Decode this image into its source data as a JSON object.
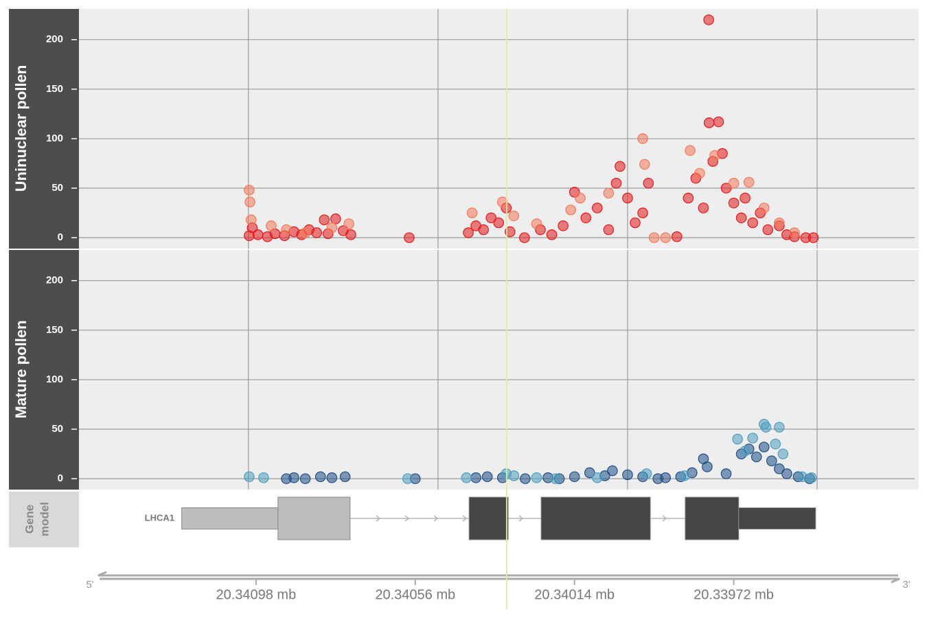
{
  "chart_data": [
    {
      "type": "scatter",
      "title": "Uninuclear pollen",
      "xlim": [
        20341447,
        20339232
      ],
      "xticks": [
        20341000,
        20340500,
        20340000,
        20339500
      ],
      "ylim": [
        -11,
        231
      ],
      "yticks": [
        0,
        50,
        100,
        150,
        200
      ],
      "grid": true,
      "series": [
        {
          "color": "#e41a1c",
          "x": [
            20340998,
            20340990,
            20340975,
            20340950,
            20340930,
            20340905,
            20340880,
            20340860,
            20340840,
            20340820,
            20340800,
            20340790,
            20340770,
            20340750,
            20340730,
            20340576,
            20340420,
            20340400,
            20340380,
            20340360,
            20340340,
            20340320,
            20340310,
            20340272,
            20340230,
            20340200,
            20340170,
            20340140,
            20340110,
            20340080,
            20340050,
            20340030,
            20340020,
            20340000,
            20339980,
            20339960,
            20339945,
            20339870,
            20339840,
            20339820,
            20339800,
            20339785,
            20339775,
            20339760,
            20339750,
            20339740,
            20339720,
            20339700,
            20339690,
            20339670,
            20339650,
            20339630,
            20339600,
            20339580,
            20339560,
            20339530,
            20339510,
            20339786
          ],
          "values": [
            2,
            10,
            3,
            1,
            4,
            2,
            6,
            3,
            8,
            5,
            18,
            4,
            19,
            7,
            3,
            0,
            5,
            12,
            8,
            20,
            15,
            30,
            6,
            0,
            8,
            3,
            12,
            46,
            20,
            30,
            8,
            55,
            72,
            40,
            15,
            25,
            55,
            1,
            40,
            60,
            30,
            116,
            77,
            117,
            85,
            50,
            35,
            20,
            40,
            15,
            25,
            8,
            12,
            3,
            1,
            0,
            0,
            220
          ]
        },
        {
          "color": "#f4795b",
          "x": [
            20340998,
            20340996,
            20340993,
            20340940,
            20340900,
            20340850,
            20340780,
            20340735,
            20340410,
            20340330,
            20340300,
            20340240,
            20340150,
            20340125,
            20340050,
            20339960,
            20339955,
            20339930,
            20339900,
            20339835,
            20339810,
            20339770,
            20339720,
            20339680,
            20339640,
            20339600,
            20339560
          ],
          "values": [
            48,
            36,
            18,
            12,
            8,
            5,
            10,
            14,
            25,
            36,
            22,
            14,
            28,
            40,
            45,
            100,
            74,
            0,
            0,
            88,
            65,
            83,
            55,
            56,
            30,
            15,
            5
          ]
        }
      ]
    },
    {
      "type": "scatter",
      "title": "Mature pollen",
      "xlim": [
        20341447,
        20339232
      ],
      "xticks": [
        20341000,
        20340500,
        20340000,
        20339500
      ],
      "ylim": [
        -11,
        231
      ],
      "yticks": [
        0,
        50,
        100,
        150,
        200
      ],
      "grid": true,
      "series": [
        {
          "color": "#1f4e89",
          "x": [
            20340900,
            20340880,
            20340850,
            20340810,
            20340780,
            20340745,
            20340560,
            20340400,
            20340370,
            20340330,
            20340270,
            20340210,
            20340180,
            20340140,
            20340100,
            20340060,
            20340040,
            20340000,
            20339960,
            20339920,
            20339900,
            20339860,
            20339830,
            20339800,
            20339790,
            20339740,
            20339700,
            20339680,
            20339660,
            20339640,
            20339620,
            20339600,
            20339580,
            20339550,
            20339520
          ],
          "values": [
            0,
            1,
            0,
            2,
            1,
            2,
            0,
            1,
            2,
            1,
            0,
            1,
            0,
            2,
            6,
            3,
            8,
            4,
            2,
            0,
            1,
            2,
            6,
            20,
            12,
            5,
            25,
            30,
            22,
            32,
            18,
            10,
            5,
            2,
            0
          ]
        },
        {
          "color": "#4f9fc0",
          "x": [
            20340998,
            20340960,
            20340580,
            20340425,
            20340320,
            20340300,
            20340240,
            20340190,
            20340080,
            20339950,
            20339850,
            20339710,
            20339690,
            20339670,
            20339640,
            20339635,
            20339610,
            20339600,
            20339590,
            20339540,
            20339515
          ],
          "values": [
            2,
            1,
            0,
            1,
            5,
            3,
            1,
            0,
            1,
            5,
            3,
            40,
            28,
            41,
            55,
            52,
            35,
            52,
            25,
            2,
            1
          ]
        }
      ]
    },
    {
      "type": "gene-model",
      "label_lines": [
        "Gene",
        "model"
      ],
      "gene": "LHCA1",
      "exons": [
        {
          "start": 20341176,
          "end": 20340922,
          "thick": false,
          "color": "#bdbdbd"
        },
        {
          "start": 20340922,
          "end": 20340732,
          "thick": true,
          "color": "#bdbdbd"
        },
        {
          "start": 20340418,
          "end": 20340315,
          "thick": true,
          "color": "#454545"
        },
        {
          "start": 20340228,
          "end": 20339940,
          "thick": true,
          "color": "#454545"
        },
        {
          "start": 20339848,
          "end": 20339707,
          "thick": true,
          "color": "#454545"
        },
        {
          "start": 20339707,
          "end": 20339504,
          "thick": false,
          "color": "#454545"
        }
      ]
    },
    {
      "type": "genome-axis",
      "xlim": [
        20341447,
        20339232
      ],
      "xticks": [
        {
          "value": 20340980,
          "label": "20.34098 mb"
        },
        {
          "value": 20340560,
          "label": "20.34056 mb"
        },
        {
          "value": 20340140,
          "label": "20.34014 mb"
        },
        {
          "value": 20339720,
          "label": "20.33972 mb"
        }
      ],
      "left_end": "5'",
      "right_end": "3'",
      "highlight": 20340319
    }
  ]
}
